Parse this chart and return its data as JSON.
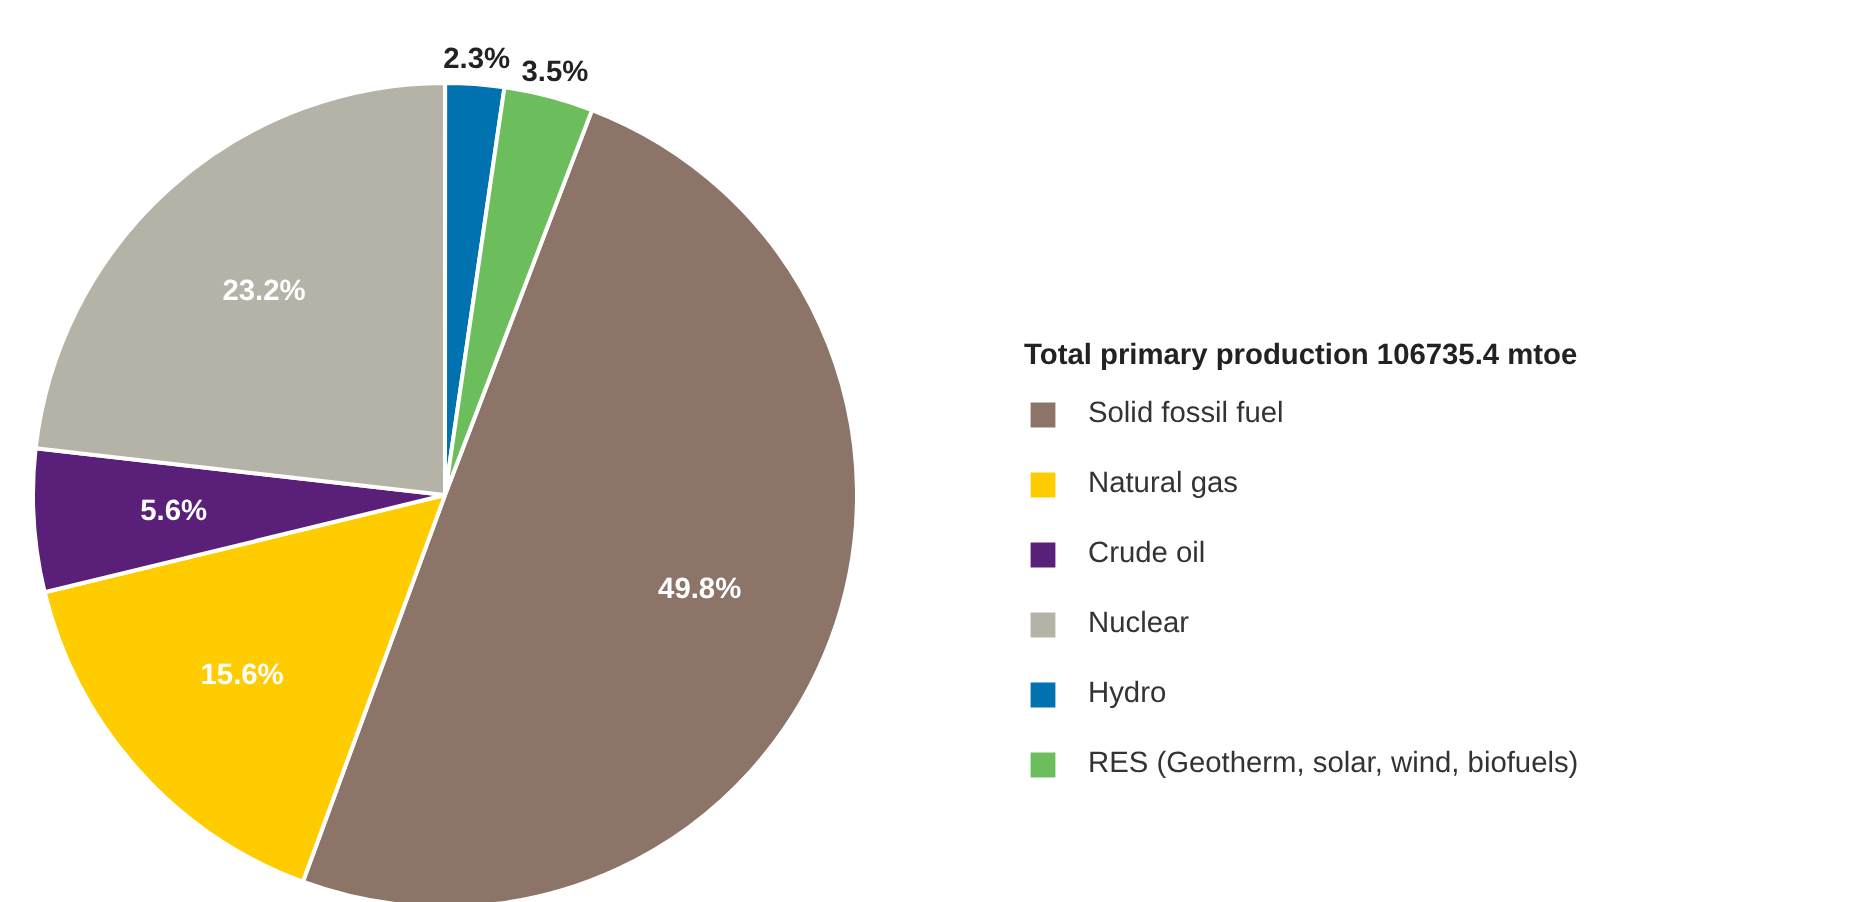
{
  "chart_data": {
    "type": "pie",
    "legend_title": "Total primary production 106735.4 mtoe",
    "legend": "right",
    "categories": [
      "Solid fossil fuel",
      "Natural gas",
      "Crude oil",
      "Nuclear",
      "Hydro",
      "RES (Geotherm, solar, wind, biofuels)"
    ],
    "values": [
      49.8,
      15.6,
      5.6,
      23.2,
      2.3,
      3.5
    ],
    "value_labels": [
      "49.8%",
      "15.6%",
      "5.6%",
      "23.2%",
      "2.3%",
      "3.5%"
    ],
    "colors": [
      "#8c7468",
      "#ffcc00",
      "#5a1f78",
      "#b5b3a7",
      "#0072b0",
      "#6cbd5c"
    ]
  }
}
